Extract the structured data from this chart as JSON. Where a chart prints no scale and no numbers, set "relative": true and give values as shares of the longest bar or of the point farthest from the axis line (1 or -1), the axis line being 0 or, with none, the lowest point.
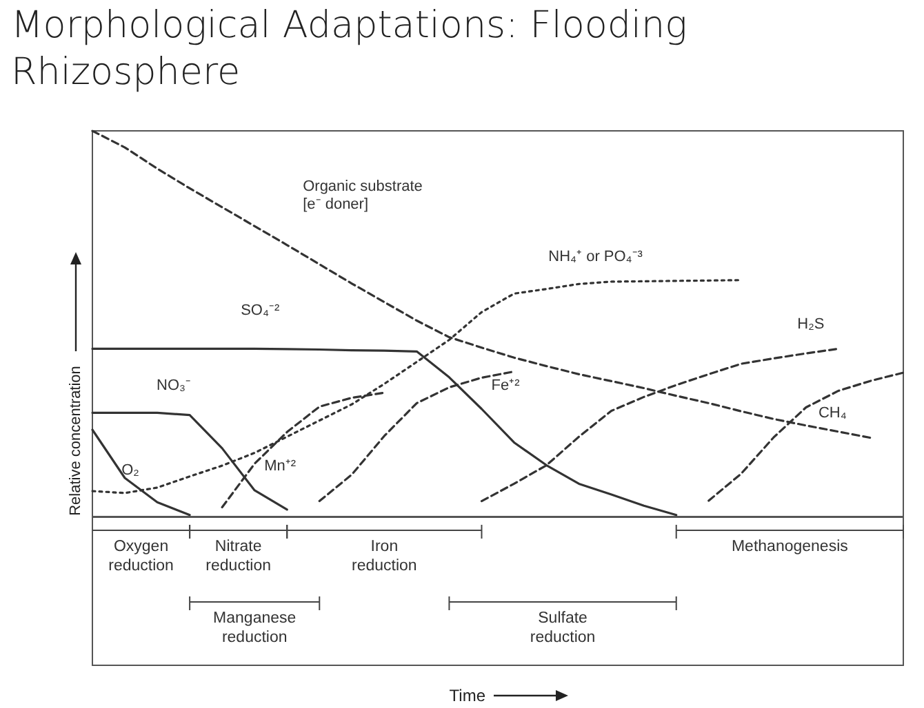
{
  "chart_data": {
    "type": "line",
    "title": "Morphological Adaptations: Flooding Rhizosphere",
    "ylabel": "Relative concentration",
    "relative": true,
    "grid": false,
    "marker": "none",
    "categories": [
      null,
      null,
      null,
      null,
      null,
      null,
      null,
      null,
      null,
      null,
      null,
      null,
      null,
      null,
      null,
      null,
      null,
      null,
      null,
      null,
      null,
      null,
      null,
      null,
      null,
      null
    ],
    "series": [
      {
        "name": "Organic substrate [e⁻ doner]",
        "color": "#333333",
        "line_style": "dashed",
        "values": [
          1.0,
          0.957,
          0.902,
          0.851,
          0.802,
          0.753,
          0.704,
          0.654,
          0.604,
          0.556,
          0.508,
          0.465,
          0.438,
          0.412,
          0.39,
          0.369,
          0.351,
          0.333,
          0.313,
          0.294,
          0.273,
          0.253,
          0.236,
          0.22,
          0.204,
          null
        ]
      },
      {
        "name": "SO₄⁻²",
        "color": "#333333",
        "line_style": "solid",
        "values": [
          0.435,
          0.435,
          0.435,
          0.435,
          0.435,
          0.435,
          0.434,
          0.433,
          0.431,
          0.43,
          0.428,
          0.361,
          0.279,
          0.192,
          0.133,
          0.085,
          0.057,
          0.028,
          0.004,
          null,
          null,
          null,
          null,
          null,
          null,
          null
        ]
      },
      {
        "name": "NO₃⁻",
        "color": "#333333",
        "line_style": "solid",
        "values": [
          0.269,
          0.269,
          0.269,
          0.263,
          0.177,
          0.068,
          0.018,
          null,
          null,
          null,
          null,
          null,
          null,
          null,
          null,
          null,
          null,
          null,
          null,
          null,
          null,
          null,
          null,
          null,
          null,
          null
        ]
      },
      {
        "name": "O₂",
        "color": "#333333",
        "line_style": "solid",
        "values": [
          0.225,
          0.1,
          0.037,
          0.004,
          null,
          null,
          null,
          null,
          null,
          null,
          null,
          null,
          null,
          null,
          null,
          null,
          null,
          null,
          null,
          null,
          null,
          null,
          null,
          null,
          null,
          null
        ]
      },
      {
        "name": "Mn⁺²",
        "color": "#333333",
        "line_style": "dashed",
        "values": [
          null,
          null,
          null,
          null,
          0.024,
          0.137,
          0.219,
          0.285,
          0.308,
          0.321,
          null,
          null,
          null,
          null,
          null,
          null,
          null,
          null,
          null,
          null,
          null,
          null,
          null,
          null,
          null,
          null
        ]
      },
      {
        "name": "Fe⁺²",
        "color": "#333333",
        "line_style": "dashed",
        "values": [
          null,
          null,
          null,
          null,
          null,
          null,
          null,
          0.04,
          0.109,
          0.209,
          0.294,
          0.335,
          0.36,
          0.376,
          null,
          null,
          null,
          null,
          null,
          null,
          null,
          null,
          null,
          null,
          null,
          null
        ]
      },
      {
        "name": "NH₄⁺ or PO₄⁻³",
        "color": "#333333",
        "line_style": "dotted",
        "values": [
          0.066,
          0.061,
          0.075,
          0.104,
          0.132,
          0.165,
          0.207,
          0.249,
          0.291,
          0.344,
          0.401,
          0.458,
          0.53,
          0.578,
          0.59,
          0.603,
          0.609,
          0.61,
          0.611,
          0.612,
          0.613,
          null,
          null,
          null,
          null,
          null
        ]
      },
      {
        "name": "H₂S",
        "color": "#333333",
        "line_style": "dashed",
        "values": [
          null,
          null,
          null,
          null,
          null,
          null,
          null,
          null,
          null,
          null,
          null,
          null,
          0.04,
          0.085,
          0.133,
          0.207,
          0.274,
          0.31,
          0.341,
          0.369,
          0.396,
          0.41,
          0.423,
          0.435,
          null,
          null
        ]
      },
      {
        "name": "CH₄",
        "color": "#333333",
        "line_style": "dashed",
        "values": [
          null,
          null,
          null,
          null,
          null,
          null,
          null,
          null,
          null,
          null,
          null,
          null,
          null,
          null,
          null,
          null,
          null,
          null,
          null,
          0.041,
          0.111,
          0.205,
          0.283,
          0.326,
          0.352,
          0.373
        ]
      }
    ],
    "annotations": [
      "Oxygen reduction",
      "Nitrate reduction",
      "Iron reduction",
      "Manganese reduction",
      "Sulfate reduction",
      "Methanogenesis",
      "Time"
    ]
  }
}
